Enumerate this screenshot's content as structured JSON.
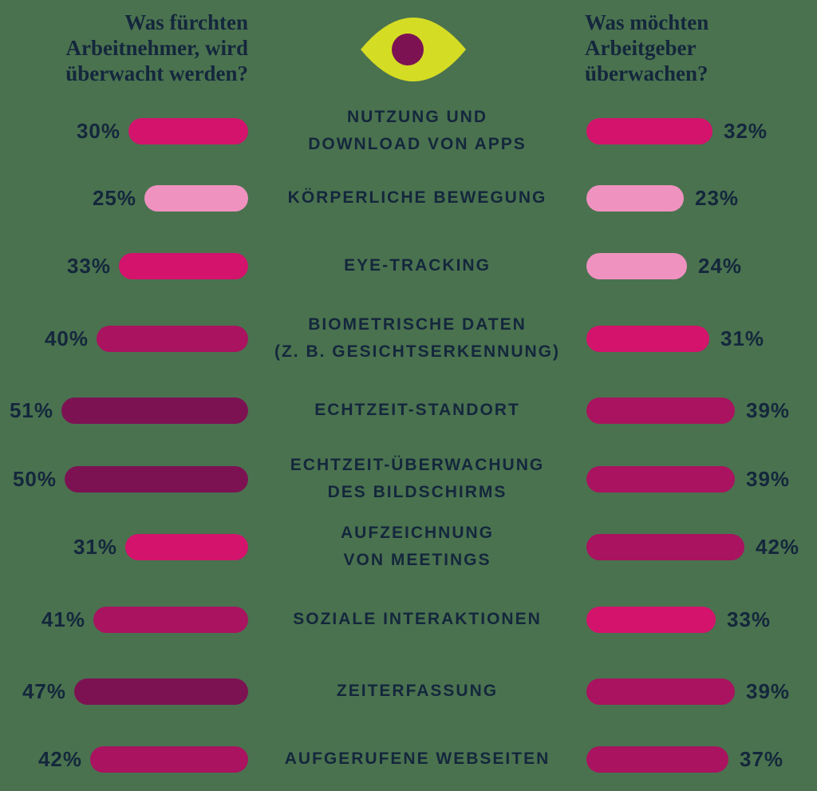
{
  "background_color": "#4a724f",
  "text_color": "#14273c",
  "header_left": {
    "lines": [
      "Was fürchten",
      "Arbeitnehmer, wird",
      "überwacht werden?"
    ]
  },
  "header_right": {
    "lines": [
      "Was möchten",
      "Arbeitgeber",
      "überwachen?"
    ]
  },
  "eye_icon": {
    "iris_color": "#d5dc24",
    "pupil_color": "#7d1253"
  },
  "chart_data": {
    "type": "bar",
    "orientation": "diverging-horizontal",
    "unit": "%",
    "grid": false,
    "legend_position": "none",
    "xlim": [
      0,
      55
    ],
    "categories": [
      [
        "NUTZUNG UND",
        "DOWNLOAD VON APPS"
      ],
      [
        "KÖRPERLICHE BEWEGUNG"
      ],
      [
        "EYE-TRACKING"
      ],
      [
        "BIOMETRISCHE DATEN",
        "(Z. B. GESICHTSERKENNUNG)"
      ],
      [
        "ECHTZEIT-STANDORT"
      ],
      [
        "ECHTZEIT-ÜBERWACHUNG",
        "DES BILDSCHIRMS"
      ],
      [
        "AUFZEICHNUNG",
        "VON MEETINGS"
      ],
      [
        "SOZIALE INTERAKTIONEN"
      ],
      [
        "ZEITERFASSUNG"
      ],
      [
        "AUFGERUFENE WEBSEITEN"
      ]
    ],
    "series": [
      {
        "name": "Was fürchten Arbeitnehmer, wird überwacht werden?",
        "side": "left",
        "values": [
          30,
          25,
          33,
          40,
          51,
          50,
          31,
          41,
          47,
          42
        ]
      },
      {
        "name": "Was möchten Arbeitgeber überwachen?",
        "side": "right",
        "values": [
          32,
          23,
          24,
          31,
          39,
          39,
          42,
          33,
          39,
          37
        ]
      }
    ],
    "value_color_scale": [
      {
        "max": 28,
        "color": "#f092c0"
      },
      {
        "max": 35,
        "color": "#d3136c"
      },
      {
        "max": 44,
        "color": "#a9135f"
      },
      {
        "max": 100,
        "color": "#7d1253"
      }
    ]
  }
}
